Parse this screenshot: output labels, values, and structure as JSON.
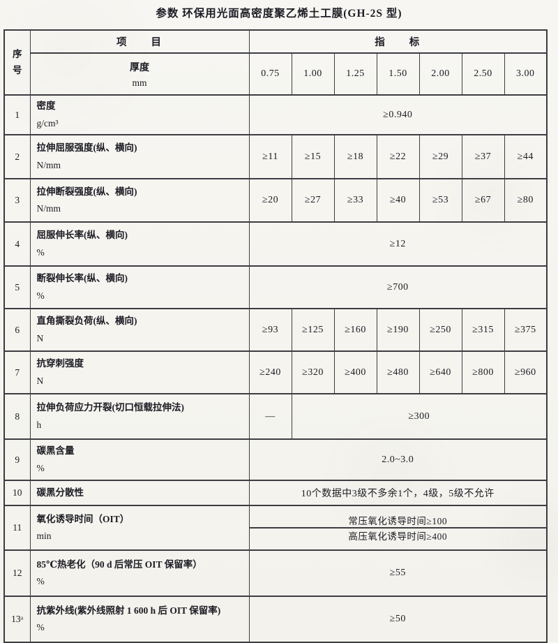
{
  "page": {
    "title": "参数  环保用光面高密度聚乙烯土工膜(GH-2S 型)"
  },
  "colors": {
    "paper": "#f6f5f0",
    "ink": "#1b1b23",
    "line": "#3c3c42"
  },
  "table": {
    "header": {
      "seq_label": "序号",
      "item_label": "项　　目",
      "indicator_label": "指　　标",
      "thickness_label": "厚度",
      "thickness_unit": "mm",
      "thickness_values": [
        "0.75",
        "1.00",
        "1.25",
        "1.50",
        "2.00",
        "2.50",
        "3.00"
      ]
    },
    "rows": [
      {
        "num": "1",
        "item": "密度",
        "unit": "g/cm³",
        "cells": [
          {
            "t": "≥0.940",
            "s": 7
          }
        ]
      },
      {
        "num": "2",
        "item": "拉伸屈服强度(纵、横向)",
        "unit": "N/mm",
        "cells": [
          {
            "t": "≥11",
            "s": 1
          },
          {
            "t": "≥15",
            "s": 1
          },
          {
            "t": "≥18",
            "s": 1
          },
          {
            "t": "≥22",
            "s": 1
          },
          {
            "t": "≥29",
            "s": 1
          },
          {
            "t": "≥37",
            "s": 1
          },
          {
            "t": "≥44",
            "s": 1
          }
        ]
      },
      {
        "num": "3",
        "item": "拉伸断裂强度(纵、横向)",
        "unit": "N/mm",
        "cells": [
          {
            "t": "≥20",
            "s": 1
          },
          {
            "t": "≥27",
            "s": 1
          },
          {
            "t": "≥33",
            "s": 1
          },
          {
            "t": "≥40",
            "s": 1
          },
          {
            "t": "≥53",
            "s": 1
          },
          {
            "t": "≥67",
            "s": 1
          },
          {
            "t": "≥80",
            "s": 1
          }
        ]
      },
      {
        "num": "4",
        "item": "屈服伸长率(纵、横向)",
        "unit": "%",
        "cells": [
          {
            "t": "≥12",
            "s": 7
          }
        ]
      },
      {
        "num": "5",
        "item": "断裂伸长率(纵、横向)",
        "unit": "%",
        "cells": [
          {
            "t": "≥700",
            "s": 7
          }
        ]
      },
      {
        "num": "6",
        "item": "直角撕裂负荷(纵、横向)",
        "unit": "N",
        "cells": [
          {
            "t": "≥93",
            "s": 1
          },
          {
            "t": "≥125",
            "s": 1
          },
          {
            "t": "≥160",
            "s": 1
          },
          {
            "t": "≥190",
            "s": 1
          },
          {
            "t": "≥250",
            "s": 1
          },
          {
            "t": "≥315",
            "s": 1
          },
          {
            "t": "≥375",
            "s": 1
          }
        ]
      },
      {
        "num": "7",
        "item": "抗穿刺强度",
        "unit": "N",
        "cells": [
          {
            "t": "≥240",
            "s": 1
          },
          {
            "t": "≥320",
            "s": 1
          },
          {
            "t": "≥400",
            "s": 1
          },
          {
            "t": "≥480",
            "s": 1
          },
          {
            "t": "≥640",
            "s": 1
          },
          {
            "t": "≥800",
            "s": 1
          },
          {
            "t": "≥960",
            "s": 1
          }
        ]
      },
      {
        "num": "8",
        "item": "拉伸负荷应力开裂(切口恒载拉伸法)",
        "unit": "h",
        "cells": [
          {
            "t": "—",
            "s": 1
          },
          {
            "t": "≥300",
            "s": 6
          }
        ]
      },
      {
        "num": "9",
        "item": "碳黑含量",
        "unit": "%",
        "cells": [
          {
            "t": "2.0~3.0",
            "s": 7
          }
        ]
      },
      {
        "num": "10",
        "item": "碳黑分散性",
        "unit": "",
        "cells": [
          {
            "t": "10个数据中3级不多余1个，4级，5级不允许",
            "s": 7
          }
        ]
      },
      {
        "num": "11",
        "item": "氧化诱导时间（OIT）",
        "unit": "min",
        "stacked": [
          "常压氧化诱导时间≥100",
          "高压氧化诱导时间≥400"
        ]
      },
      {
        "num": "12",
        "item": "85℃热老化（90 d 后常压 OIT 保留率）",
        "unit": "%",
        "cells": [
          {
            "t": "≥55",
            "s": 7
          }
        ]
      },
      {
        "num": "13ᵃ",
        "item": "抗紫外线(紫外线照射 1 600 h 后 OIT 保留率)",
        "unit": "%",
        "cells": [
          {
            "t": "≥50",
            "s": 7
          }
        ]
      }
    ]
  }
}
